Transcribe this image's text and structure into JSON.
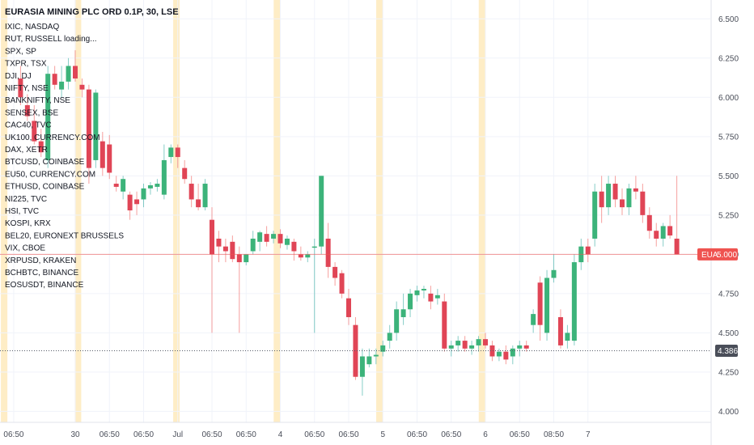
{
  "chart_data": {
    "type": "candlestick",
    "title": "EURASIA MINING PLC ORD 0.1P, 30, LSE",
    "ticker": "EUA",
    "last_price": "5.000",
    "crosshair_price": "4.386",
    "crosshair_value": 4.386,
    "last_value": 5.0,
    "ylim": [
      3.93,
      6.62
    ],
    "y_ticks": [
      {
        "v": 6.5,
        "label": "6.500"
      },
      {
        "v": 6.25,
        "label": "6.250"
      },
      {
        "v": 6.0,
        "label": "6.000"
      },
      {
        "v": 5.75,
        "label": "5.750"
      },
      {
        "v": 5.5,
        "label": "5.500"
      },
      {
        "v": 5.25,
        "label": "5.250"
      },
      {
        "v": 5.0,
        "label": "5.000"
      },
      {
        "v": 4.75,
        "label": "4.750"
      },
      {
        "v": 4.5,
        "label": "4.500"
      },
      {
        "v": 4.25,
        "label": "4.250"
      },
      {
        "v": 4.0,
        "label": "4.000"
      }
    ],
    "x_ticks": [
      {
        "i": 1,
        "label": "06:50"
      },
      {
        "i": 10,
        "label": "30"
      },
      {
        "i": 15,
        "label": "06:50"
      },
      {
        "i": 20,
        "label": "06:50"
      },
      {
        "i": 25,
        "label": "Jul"
      },
      {
        "i": 30,
        "label": "06:50"
      },
      {
        "i": 35,
        "label": "06:50"
      },
      {
        "i": 40,
        "label": "4"
      },
      {
        "i": 45,
        "label": "06:50"
      },
      {
        "i": 50,
        "label": "06:50"
      },
      {
        "i": 55,
        "label": "5"
      },
      {
        "i": 60,
        "label": "06:50"
      },
      {
        "i": 65,
        "label": "06:50"
      },
      {
        "i": 70,
        "label": "6"
      },
      {
        "i": 75,
        "label": "06:50"
      },
      {
        "i": 80,
        "label": "08:50"
      },
      {
        "i": 85,
        "label": "7"
      }
    ],
    "session_bands": [
      -0.4,
      10.4,
      24.8,
      39.5,
      54.5,
      69.5
    ],
    "candles": [
      {
        "i": 2,
        "o": 6.12,
        "h": 6.2,
        "l": 5.95,
        "c": 6.0
      },
      {
        "i": 3,
        "o": 5.95,
        "h": 6.02,
        "l": 5.85,
        "c": 5.88
      },
      {
        "i": 4,
        "o": 5.85,
        "h": 5.95,
        "l": 5.7,
        "c": 5.72
      },
      {
        "i": 5,
        "o": 5.72,
        "h": 5.8,
        "l": 5.62,
        "c": 5.65
      },
      {
        "i": 6,
        "o": 5.6,
        "h": 6.2,
        "l": 5.55,
        "c": 6.15
      },
      {
        "i": 7,
        "o": 6.15,
        "h": 6.2,
        "l": 6.05,
        "c": 6.08
      },
      {
        "i": 8,
        "o": 6.05,
        "h": 6.2,
        "l": 6.0,
        "c": 6.1
      },
      {
        "i": 9,
        "o": 6.1,
        "h": 6.25,
        "l": 6.05,
        "c": 6.2
      },
      {
        "i": 10,
        "o": 6.2,
        "h": 6.3,
        "l": 6.1,
        "c": 6.12
      },
      {
        "i": 11,
        "o": 6.08,
        "h": 6.12,
        "l": 6.0,
        "c": 6.05
      },
      {
        "i": 12,
        "o": 6.05,
        "h": 6.08,
        "l": 5.45,
        "c": 5.55
      },
      {
        "i": 13,
        "o": 5.6,
        "h": 6.05,
        "l": 5.55,
        "c": 6.03
      },
      {
        "i": 14,
        "o": 5.72,
        "h": 5.78,
        "l": 5.5,
        "c": 5.55
      },
      {
        "i": 15,
        "o": 5.7,
        "h": 5.76,
        "l": 5.48,
        "c": 5.52
      },
      {
        "i": 16,
        "o": 5.45,
        "h": 5.5,
        "l": 5.4,
        "c": 5.43
      },
      {
        "i": 17,
        "o": 5.4,
        "h": 5.5,
        "l": 5.35,
        "c": 5.48
      },
      {
        "i": 18,
        "o": 5.38,
        "h": 5.4,
        "l": 5.22,
        "c": 5.28
      },
      {
        "i": 19,
        "o": 5.35,
        "h": 5.4,
        "l": 5.25,
        "c": 5.32
      },
      {
        "i": 20,
        "o": 5.35,
        "h": 5.45,
        "l": 5.3,
        "c": 5.42
      },
      {
        "i": 21,
        "o": 5.42,
        "h": 5.46,
        "l": 5.38,
        "c": 5.44
      },
      {
        "i": 22,
        "o": 5.43,
        "h": 5.48,
        "l": 5.4,
        "c": 5.45
      },
      {
        "i": 23,
        "o": 5.38,
        "h": 5.7,
        "l": 5.35,
        "c": 5.6
      },
      {
        "i": 24,
        "o": 5.62,
        "h": 5.7,
        "l": 5.58,
        "c": 5.68
      },
      {
        "i": 25,
        "o": 5.68,
        "h": 5.7,
        "l": 5.55,
        "c": 5.62
      },
      {
        "i": 26,
        "o": 5.55,
        "h": 5.6,
        "l": 5.45,
        "c": 5.48
      },
      {
        "i": 27,
        "o": 5.45,
        "h": 5.5,
        "l": 5.3,
        "c": 5.35
      },
      {
        "i": 28,
        "o": 5.35,
        "h": 5.45,
        "l": 5.28,
        "c": 5.3
      },
      {
        "i": 29,
        "o": 5.3,
        "h": 5.48,
        "l": 5.28,
        "c": 5.45
      },
      {
        "i": 30,
        "o": 5.22,
        "h": 5.3,
        "l": 4.5,
        "c": 5.0
      },
      {
        "i": 31,
        "o": 5.1,
        "h": 5.15,
        "l": 4.95,
        "c": 5.05
      },
      {
        "i": 32,
        "o": 5.05,
        "h": 5.1,
        "l": 4.95,
        "c": 5.02
      },
      {
        "i": 33,
        "o": 5.08,
        "h": 5.12,
        "l": 4.95,
        "c": 4.97
      },
      {
        "i": 34,
        "o": 5.0,
        "h": 5.05,
        "l": 4.5,
        "c": 4.95
      },
      {
        "i": 35,
        "o": 4.95,
        "h": 5.0,
        "l": 4.93,
        "c": 5.0
      },
      {
        "i": 36,
        "o": 5.02,
        "h": 5.15,
        "l": 5.0,
        "c": 5.1
      },
      {
        "i": 37,
        "o": 5.08,
        "h": 5.15,
        "l": 5.02,
        "c": 5.14
      },
      {
        "i": 38,
        "o": 5.13,
        "h": 5.18,
        "l": 5.05,
        "c": 5.08
      },
      {
        "i": 39,
        "o": 5.1,
        "h": 5.15,
        "l": 5.07,
        "c": 5.13
      },
      {
        "i": 40,
        "o": 5.13,
        "h": 5.16,
        "l": 5.04,
        "c": 5.07
      },
      {
        "i": 41,
        "o": 5.06,
        "h": 5.12,
        "l": 5.03,
        "c": 5.1
      },
      {
        "i": 42,
        "o": 5.08,
        "h": 5.1,
        "l": 4.96,
        "c": 5.02
      },
      {
        "i": 43,
        "o": 5.0,
        "h": 5.05,
        "l": 4.96,
        "c": 4.98
      },
      {
        "i": 44,
        "o": 4.98,
        "h": 5.02,
        "l": 4.95,
        "c": 5.0
      },
      {
        "i": 45,
        "o": 5.05,
        "h": 5.1,
        "l": 4.5,
        "c": 5.05
      },
      {
        "i": 46,
        "o": 5.05,
        "h": 5.5,
        "l": 5.0,
        "c": 5.5
      },
      {
        "i": 47,
        "o": 5.1,
        "h": 5.2,
        "l": 4.85,
        "c": 4.92
      },
      {
        "i": 48,
        "o": 4.92,
        "h": 4.95,
        "l": 4.8,
        "c": 4.85
      },
      {
        "i": 49,
        "o": 4.88,
        "h": 4.9,
        "l": 4.72,
        "c": 4.75
      },
      {
        "i": 50,
        "o": 4.72,
        "h": 4.78,
        "l": 4.55,
        "c": 4.6
      },
      {
        "i": 51,
        "o": 4.55,
        "h": 4.6,
        "l": 4.2,
        "c": 4.22
      },
      {
        "i": 52,
        "o": 4.22,
        "h": 4.4,
        "l": 4.1,
        "c": 4.35
      },
      {
        "i": 53,
        "o": 4.3,
        "h": 4.4,
        "l": 4.28,
        "c": 4.35
      },
      {
        "i": 54,
        "o": 4.35,
        "h": 4.4,
        "l": 4.3,
        "c": 4.36
      },
      {
        "i": 55,
        "o": 4.38,
        "h": 4.45,
        "l": 4.35,
        "c": 4.42
      },
      {
        "i": 56,
        "o": 4.45,
        "h": 4.55,
        "l": 4.4,
        "c": 4.5
      },
      {
        "i": 57,
        "o": 4.5,
        "h": 4.7,
        "l": 4.45,
        "c": 4.65
      },
      {
        "i": 58,
        "o": 4.6,
        "h": 4.75,
        "l": 4.55,
        "c": 4.65
      },
      {
        "i": 59,
        "o": 4.65,
        "h": 4.78,
        "l": 4.6,
        "c": 4.75
      },
      {
        "i": 60,
        "o": 4.74,
        "h": 4.8,
        "l": 4.7,
        "c": 4.77
      },
      {
        "i": 61,
        "o": 4.77,
        "h": 4.8,
        "l": 4.72,
        "c": 4.78
      },
      {
        "i": 62,
        "o": 4.75,
        "h": 4.8,
        "l": 4.65,
        "c": 4.7
      },
      {
        "i": 63,
        "o": 4.72,
        "h": 4.78,
        "l": 4.68,
        "c": 4.74
      },
      {
        "i": 64,
        "o": 4.7,
        "h": 4.75,
        "l": 4.38,
        "c": 4.4
      },
      {
        "i": 65,
        "o": 4.4,
        "h": 4.45,
        "l": 4.35,
        "c": 4.42
      },
      {
        "i": 66,
        "o": 4.42,
        "h": 4.48,
        "l": 4.38,
        "c": 4.45
      },
      {
        "i": 67,
        "o": 4.45,
        "h": 4.48,
        "l": 4.38,
        "c": 4.4
      },
      {
        "i": 68,
        "o": 4.4,
        "h": 4.45,
        "l": 4.36,
        "c": 4.42
      },
      {
        "i": 69,
        "o": 4.42,
        "h": 4.48,
        "l": 4.38,
        "c": 4.46
      },
      {
        "i": 70,
        "o": 4.46,
        "h": 4.5,
        "l": 4.4,
        "c": 4.42
      },
      {
        "i": 71,
        "o": 4.42,
        "h": 4.45,
        "l": 4.32,
        "c": 4.35
      },
      {
        "i": 72,
        "o": 4.35,
        "h": 4.4,
        "l": 4.32,
        "c": 4.38
      },
      {
        "i": 73,
        "o": 4.38,
        "h": 4.42,
        "l": 4.3,
        "c": 4.33
      },
      {
        "i": 74,
        "o": 4.35,
        "h": 4.42,
        "l": 4.3,
        "c": 4.4
      },
      {
        "i": 75,
        "o": 4.4,
        "h": 4.45,
        "l": 4.35,
        "c": 4.42
      },
      {
        "i": 76,
        "o": 4.42,
        "h": 4.45,
        "l": 4.38,
        "c": 4.4
      },
      {
        "i": 77,
        "o": 4.55,
        "h": 4.65,
        "l": 4.5,
        "c": 4.62
      },
      {
        "i": 78,
        "o": 4.82,
        "h": 4.86,
        "l": 4.45,
        "c": 4.55
      },
      {
        "i": 79,
        "o": 4.5,
        "h": 4.9,
        "l": 4.45,
        "c": 4.85
      },
      {
        "i": 80,
        "o": 4.85,
        "h": 5.0,
        "l": 4.82,
        "c": 4.9
      },
      {
        "i": 81,
        "o": 4.6,
        "h": 4.65,
        "l": 4.4,
        "c": 4.42
      },
      {
        "i": 82,
        "o": 4.45,
        "h": 4.55,
        "l": 4.4,
        "c": 4.5
      },
      {
        "i": 83,
        "o": 4.45,
        "h": 5.0,
        "l": 4.42,
        "c": 4.95
      },
      {
        "i": 84,
        "o": 4.95,
        "h": 5.1,
        "l": 4.9,
        "c": 5.05
      },
      {
        "i": 85,
        "o": 5.05,
        "h": 5.1,
        "l": 4.95,
        "c": 5.0
      },
      {
        "i": 86,
        "o": 5.1,
        "h": 5.45,
        "l": 5.05,
        "c": 5.4
      },
      {
        "i": 87,
        "o": 5.4,
        "h": 5.5,
        "l": 5.2,
        "c": 5.3
      },
      {
        "i": 88,
        "o": 5.3,
        "h": 5.5,
        "l": 5.25,
        "c": 5.45
      },
      {
        "i": 89,
        "o": 5.45,
        "h": 5.5,
        "l": 5.3,
        "c": 5.35
      },
      {
        "i": 90,
        "o": 5.35,
        "h": 5.42,
        "l": 5.25,
        "c": 5.3
      },
      {
        "i": 91,
        "o": 5.3,
        "h": 5.45,
        "l": 5.25,
        "c": 5.42
      },
      {
        "i": 92,
        "o": 5.42,
        "h": 5.5,
        "l": 5.35,
        "c": 5.4
      },
      {
        "i": 93,
        "o": 5.4,
        "h": 5.45,
        "l": 5.2,
        "c": 5.25
      },
      {
        "i": 94,
        "o": 5.25,
        "h": 5.3,
        "l": 5.1,
        "c": 5.15
      },
      {
        "i": 95,
        "o": 5.15,
        "h": 5.2,
        "l": 5.05,
        "c": 5.1
      },
      {
        "i": 96,
        "o": 5.1,
        "h": 5.2,
        "l": 5.05,
        "c": 5.18
      },
      {
        "i": 97,
        "o": 5.18,
        "h": 5.25,
        "l": 5.1,
        "c": 5.12
      },
      {
        "i": 98,
        "o": 5.1,
        "h": 5.5,
        "l": 5.0,
        "c": 5.0
      }
    ]
  },
  "symbols": [
    "IXIC, NASDAQ",
    "RUT, RUSSELL loading...",
    "SPX, SP",
    "TXPR, TSX",
    "DJI, DJ",
    "NIFTY, NSE",
    "BANKNIFTY, NSE",
    "SENSEX, BSE",
    "CAC40, TVC",
    "UK100, CURRENCY.COM",
    "DAX, XETR",
    "BTCUSD, COINBASE",
    "EU50, CURRENCY.COM",
    "ETHUSD, COINBASE",
    "NI225, TVC",
    "HSI, TVC",
    "KOSPI, KRX",
    "BEL20, EURONEXT BRUSSELS",
    "VIX, CBOE",
    "XRPUSD, KRAKEN",
    "BCHBTC, BINANCE",
    "EOSUSDT, BINANCE"
  ],
  "colors": {
    "up": "#26a69a",
    "down": "#ef5350",
    "up_body": "#3cb37a",
    "down_body": "#e04556",
    "session_band": "#fde7b3",
    "grid": "#f0f3fa",
    "axis_text": "#4a4e59",
    "last_price_badge": "#ef5350",
    "crosshair_badge": "#4a4e59"
  }
}
